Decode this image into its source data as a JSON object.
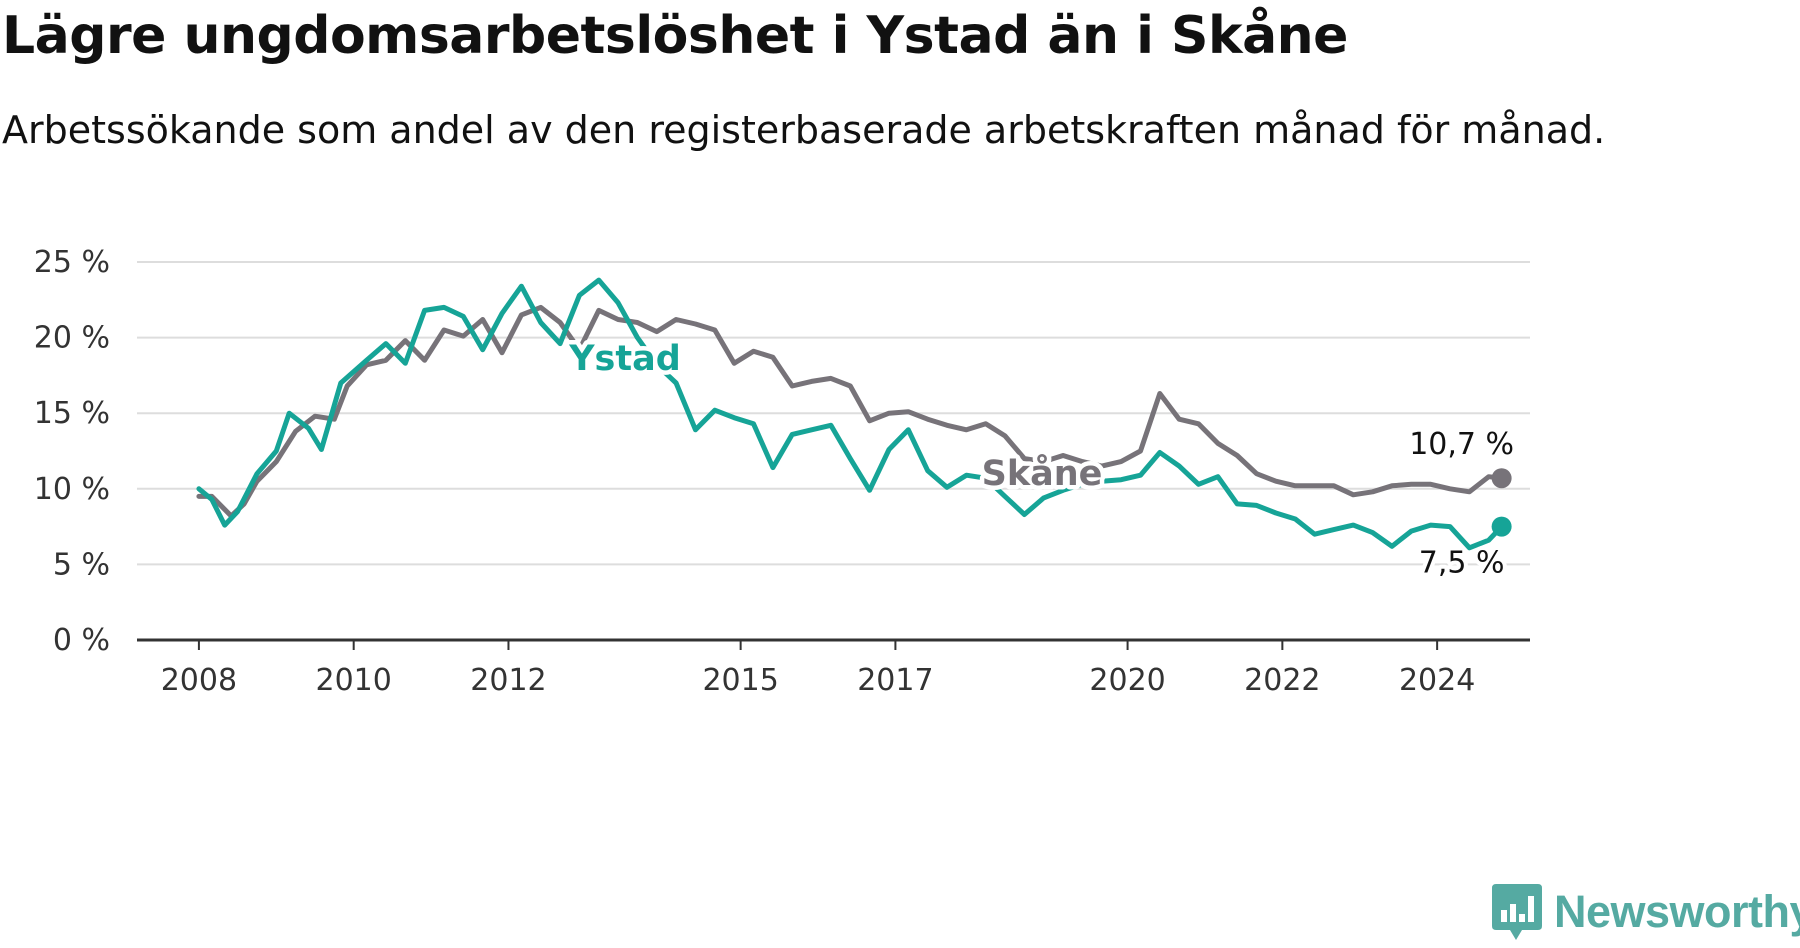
{
  "header": {
    "title": "Lägre ungdomsarbetslöshet i Ystad än i Skåne",
    "subtitle": "Arbetssökande som andel av den registerbaserade arbetskraften månad för månad."
  },
  "brand": {
    "name": "Newsworthy",
    "color": "#55aaa2",
    "icon": "bar-chart-bubble-icon"
  },
  "chart_data": {
    "type": "line",
    "title": "Lägre ungdomsarbetslöshet i Ystad än i Skåne",
    "subtitle": "Arbetssökande som andel av den registerbaserade arbetskraften månad för månad.",
    "xlabel": "",
    "ylabel": "",
    "x_ticks": [
      "2008",
      "2010",
      "2012",
      "2015",
      "2017",
      "2020",
      "2022",
      "2024"
    ],
    "x_tick_positions_years": [
      2008,
      2010,
      2012,
      2015,
      2017,
      2020,
      2022,
      2024
    ],
    "xlim": [
      2007.2,
      2025.2
    ],
    "y_ticks": [
      "0 %",
      "5 %",
      "10 %",
      "15 %",
      "20 %",
      "25 %"
    ],
    "ylim": [
      0,
      25
    ],
    "grid": "horizontal",
    "legend": "none (direct labels)",
    "series": [
      {
        "name": "Skåne",
        "color": "#777379",
        "end_label": "10,7 %",
        "points": [
          [
            "2008-01",
            9.5
          ],
          [
            "2008-03",
            9.5
          ],
          [
            "2008-06",
            8.2
          ],
          [
            "2008-08",
            9.0
          ],
          [
            "2008-10",
            10.5
          ],
          [
            "2009-01",
            11.8
          ],
          [
            "2009-04",
            13.8
          ],
          [
            "2009-07",
            14.8
          ],
          [
            "2009-10",
            14.6
          ],
          [
            "2009-12",
            16.8
          ],
          [
            "2010-03",
            18.2
          ],
          [
            "2010-06",
            18.5
          ],
          [
            "2010-09",
            19.8
          ],
          [
            "2010-12",
            18.5
          ],
          [
            "2011-03",
            20.5
          ],
          [
            "2011-06",
            20.1
          ],
          [
            "2011-09",
            21.2
          ],
          [
            "2011-12",
            19.0
          ],
          [
            "2012-03",
            21.5
          ],
          [
            "2012-06",
            22.0
          ],
          [
            "2012-09",
            21.0
          ],
          [
            "2012-12",
            19.2
          ],
          [
            "2013-03",
            21.8
          ],
          [
            "2013-06",
            21.2
          ],
          [
            "2013-09",
            21.0
          ],
          [
            "2013-12",
            20.4
          ],
          [
            "2014-03",
            21.2
          ],
          [
            "2014-06",
            20.9
          ],
          [
            "2014-09",
            20.5
          ],
          [
            "2014-12",
            18.3
          ],
          [
            "2015-03",
            19.1
          ],
          [
            "2015-06",
            18.7
          ],
          [
            "2015-09",
            16.8
          ],
          [
            "2015-12",
            17.1
          ],
          [
            "2016-03",
            17.3
          ],
          [
            "2016-06",
            16.8
          ],
          [
            "2016-09",
            14.5
          ],
          [
            "2016-12",
            15.0
          ],
          [
            "2017-03",
            15.1
          ],
          [
            "2017-06",
            14.6
          ],
          [
            "2017-09",
            14.2
          ],
          [
            "2017-12",
            13.9
          ],
          [
            "2018-03",
            14.3
          ],
          [
            "2018-06",
            13.5
          ],
          [
            "2018-09",
            12.0
          ],
          [
            "2018-12",
            11.8
          ],
          [
            "2019-03",
            12.2
          ],
          [
            "2019-06",
            11.8
          ],
          [
            "2019-09",
            11.5
          ],
          [
            "2019-12",
            11.8
          ],
          [
            "2020-03",
            12.5
          ],
          [
            "2020-06",
            16.3
          ],
          [
            "2020-09",
            14.6
          ],
          [
            "2020-12",
            14.3
          ],
          [
            "2021-03",
            13.0
          ],
          [
            "2021-06",
            12.2
          ],
          [
            "2021-09",
            11.0
          ],
          [
            "2021-12",
            10.5
          ],
          [
            "2022-03",
            10.2
          ],
          [
            "2022-06",
            10.2
          ],
          [
            "2022-09",
            10.2
          ],
          [
            "2022-12",
            9.6
          ],
          [
            "2023-03",
            9.8
          ],
          [
            "2023-06",
            10.2
          ],
          [
            "2023-09",
            10.3
          ],
          [
            "2023-12",
            10.3
          ],
          [
            "2024-03",
            10.0
          ],
          [
            "2024-06",
            9.8
          ],
          [
            "2024-09",
            10.8
          ],
          [
            "2024-11",
            10.7
          ]
        ]
      },
      {
        "name": "Ystad",
        "color": "#16a497",
        "end_label": "7,5 %",
        "points": [
          [
            "2008-01",
            10.0
          ],
          [
            "2008-03",
            9.3
          ],
          [
            "2008-05",
            7.6
          ],
          [
            "2008-07",
            8.5
          ],
          [
            "2008-10",
            11.0
          ],
          [
            "2009-01",
            12.5
          ],
          [
            "2009-03",
            15.0
          ],
          [
            "2009-06",
            14.0
          ],
          [
            "2009-08",
            12.6
          ],
          [
            "2009-11",
            17.0
          ],
          [
            "2010-03",
            18.5
          ],
          [
            "2010-06",
            19.6
          ],
          [
            "2010-09",
            18.3
          ],
          [
            "2010-12",
            21.8
          ],
          [
            "2011-03",
            22.0
          ],
          [
            "2011-06",
            21.4
          ],
          [
            "2011-09",
            19.2
          ],
          [
            "2011-12",
            21.6
          ],
          [
            "2012-03",
            23.4
          ],
          [
            "2012-06",
            21.0
          ],
          [
            "2012-09",
            19.6
          ],
          [
            "2012-12",
            22.8
          ],
          [
            "2013-03",
            23.8
          ],
          [
            "2013-06",
            22.3
          ],
          [
            "2013-09",
            20.0
          ],
          [
            "2013-12",
            18.2
          ],
          [
            "2014-03",
            17.0
          ],
          [
            "2014-06",
            13.9
          ],
          [
            "2014-09",
            15.2
          ],
          [
            "2014-12",
            14.7
          ],
          [
            "2015-03",
            14.3
          ],
          [
            "2015-06",
            11.4
          ],
          [
            "2015-09",
            13.6
          ],
          [
            "2015-12",
            13.9
          ],
          [
            "2016-03",
            14.2
          ],
          [
            "2016-06",
            12.0
          ],
          [
            "2016-09",
            9.9
          ],
          [
            "2016-12",
            12.6
          ],
          [
            "2017-03",
            13.9
          ],
          [
            "2017-06",
            11.2
          ],
          [
            "2017-09",
            10.1
          ],
          [
            "2017-12",
            10.9
          ],
          [
            "2018-03",
            10.7
          ],
          [
            "2018-06",
            9.5
          ],
          [
            "2018-09",
            8.3
          ],
          [
            "2018-12",
            9.4
          ],
          [
            "2019-03",
            9.9
          ],
          [
            "2019-06",
            10.3
          ],
          [
            "2019-09",
            10.5
          ],
          [
            "2019-12",
            10.6
          ],
          [
            "2020-03",
            10.9
          ],
          [
            "2020-06",
            12.4
          ],
          [
            "2020-09",
            11.5
          ],
          [
            "2020-12",
            10.3
          ],
          [
            "2021-03",
            10.8
          ],
          [
            "2021-06",
            9.0
          ],
          [
            "2021-09",
            8.9
          ],
          [
            "2021-12",
            8.4
          ],
          [
            "2022-03",
            8.0
          ],
          [
            "2022-06",
            7.0
          ],
          [
            "2022-09",
            7.3
          ],
          [
            "2022-12",
            7.6
          ],
          [
            "2023-03",
            7.1
          ],
          [
            "2023-06",
            6.2
          ],
          [
            "2023-09",
            7.2
          ],
          [
            "2023-12",
            7.6
          ],
          [
            "2024-03",
            7.5
          ],
          [
            "2024-06",
            6.1
          ],
          [
            "2024-09",
            6.6
          ],
          [
            "2024-11",
            7.5
          ]
        ]
      }
    ]
  }
}
